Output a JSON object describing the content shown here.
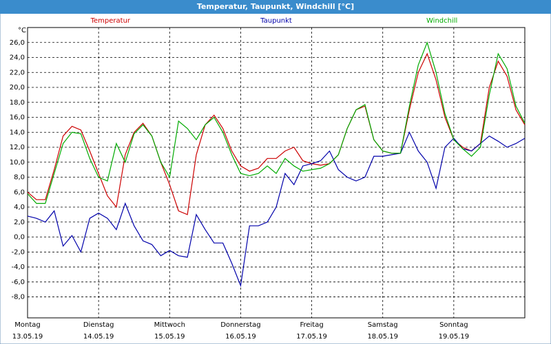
{
  "chart_data": {
    "type": "line",
    "title": "Temperatur, Taupunkt, Windchill [°C]",
    "y_unit": "°C",
    "grid": true,
    "xlim": [
      0,
      168
    ],
    "ylim": [
      -10.8,
      28
    ],
    "xticks": [
      {
        "value": 0,
        "label": "Montag",
        "date": "13.05.19"
      },
      {
        "value": 24,
        "label": "Dienstag",
        "date": "14.05.19"
      },
      {
        "value": 48,
        "label": "Mittwoch",
        "date": "15.05.19"
      },
      {
        "value": 72,
        "label": "Donnerstag",
        "date": "16.05.19"
      },
      {
        "value": 96,
        "label": "Freitag",
        "date": "17.05.19"
      },
      {
        "value": 120,
        "label": "Samstag",
        "date": "18.05.19"
      },
      {
        "value": 144,
        "label": "Sonntag",
        "date": "19.05.19"
      }
    ],
    "yticks": [
      {
        "value": -8,
        "label": "-8,0"
      },
      {
        "value": -6,
        "label": "-6,0"
      },
      {
        "value": -4,
        "label": "-4,0"
      },
      {
        "value": -2,
        "label": "-2,0"
      },
      {
        "value": 0,
        "label": "0,0"
      },
      {
        "value": 2,
        "label": "2,0"
      },
      {
        "value": 4,
        "label": "4,0"
      },
      {
        "value": 6,
        "label": "6,0"
      },
      {
        "value": 8,
        "label": "8,0"
      },
      {
        "value": 10,
        "label": "10,0"
      },
      {
        "value": 12,
        "label": "12,0"
      },
      {
        "value": 14,
        "label": "14,0"
      },
      {
        "value": 16,
        "label": "16,0"
      },
      {
        "value": 18,
        "label": "18,0"
      },
      {
        "value": 20,
        "label": "20,0"
      },
      {
        "value": 22,
        "label": "22,0"
      },
      {
        "value": 24,
        "label": "24,0"
      },
      {
        "value": 26,
        "label": "26,0"
      }
    ],
    "x": [
      0,
      3,
      6,
      9,
      12,
      15,
      18,
      21,
      24,
      27,
      30,
      33,
      36,
      39,
      42,
      45,
      48,
      51,
      54,
      57,
      60,
      63,
      66,
      69,
      72,
      75,
      78,
      81,
      84,
      87,
      90,
      93,
      96,
      99,
      102,
      105,
      108,
      111,
      114,
      117,
      120,
      123,
      126,
      129,
      132,
      135,
      138,
      141,
      144,
      147,
      150,
      153,
      156,
      159,
      162,
      165,
      168
    ],
    "series": [
      {
        "name": "Temperatur",
        "color": "#cc0000",
        "values": [
          6.0,
          5.0,
          5.0,
          9.0,
          13.5,
          14.8,
          14.3,
          11.5,
          8.5,
          5.5,
          4.0,
          11,
          14,
          15.2,
          13.5,
          10,
          7,
          3.5,
          3.0,
          11,
          15,
          16.3,
          14.5,
          11.5,
          9.5,
          8.8,
          9.2,
          10.5,
          10.5,
          11.5,
          12,
          10.2,
          9.8,
          9.6,
          9.8,
          11,
          14.5,
          17,
          17.5,
          13,
          11.5,
          11.2,
          11.2,
          17,
          22,
          24.5,
          21,
          16,
          13,
          12,
          11.5,
          12.5,
          20,
          23.5,
          21.5,
          17,
          15.0
        ]
      },
      {
        "name": "Taupunkt",
        "color": "#0000aa",
        "values": [
          2.8,
          2.5,
          2.0,
          3.5,
          -1.2,
          0.2,
          -2.0,
          2.5,
          3.2,
          2.5,
          1.0,
          4.5,
          1.5,
          -0.5,
          -1.0,
          -2.5,
          -1.8,
          -2.5,
          -2.7,
          3.0,
          1.0,
          -0.8,
          -0.8,
          -3.5,
          -6.5,
          1.5,
          1.5,
          2.0,
          4.0,
          8.5,
          7.0,
          9.5,
          9.8,
          10.2,
          11.5,
          9.0,
          8.0,
          7.5,
          8.0,
          10.8,
          10.8,
          11.0,
          11.2,
          14.0,
          11.5,
          10.0,
          6.5,
          12.0,
          13.2,
          11.8,
          11.5,
          12.5,
          13.5,
          12.8,
          12.0,
          12.5,
          13.2
        ]
      },
      {
        "name": "Windchill",
        "color": "#00aa00",
        "values": [
          5.8,
          4.5,
          4.5,
          8.5,
          12.5,
          14.0,
          13.8,
          10.5,
          8.0,
          7.5,
          12.5,
          10,
          13.8,
          15,
          13.5,
          10,
          8,
          15.5,
          14.5,
          13,
          15,
          16,
          14,
          11,
          8.5,
          8.2,
          8.5,
          9.5,
          8.5,
          10.5,
          9.5,
          8.8,
          9.0,
          9.2,
          9.8,
          11,
          14.5,
          17,
          17.7,
          13,
          11.5,
          11.2,
          11.2,
          17.5,
          23,
          26.0,
          22,
          16.5,
          13,
          11.8,
          10.8,
          12,
          19,
          24.5,
          22.5,
          17.5,
          15.2
        ]
      }
    ]
  }
}
